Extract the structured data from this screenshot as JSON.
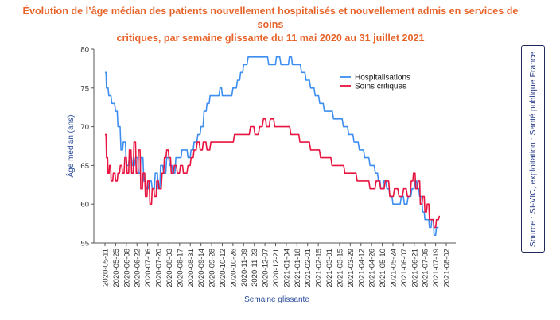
{
  "title": {
    "line1": "Évolution de l’âge médian des patients nouvellement hospitalisés et nouvellement admis en services de soins",
    "line2": "critiques, par semaine glissante du 11 mai 2020 au 31 juillet 2021"
  },
  "source": "Source : SI-VIC, exploitation : Santé publique France",
  "colors": {
    "accent": "#e8632a",
    "hospitalisations": "#3d8ef0",
    "soins_critiques": "#e8133e"
  },
  "chart_data": {
    "type": "line",
    "xlabel": "Semaine glissante",
    "ylabel": "Âge médian (ans)",
    "ylim": [
      55,
      80
    ],
    "yticks": [
      55,
      60,
      65,
      70,
      75,
      80
    ],
    "xticks": [
      "2020-05-11",
      "2020-05-25",
      "2020-06-08",
      "2020-06-22",
      "2020-07-06",
      "2020-07-20",
      "2020-08-03",
      "2020-08-17",
      "2020-08-31",
      "2020-09-14",
      "2020-09-28",
      "2020-10-12",
      "2020-10-26",
      "2020-11-09",
      "2020-11-23",
      "2020-12-07",
      "2020-12-21",
      "2021-01-04",
      "2021-01-18",
      "2021-02-01",
      "2021-02-15",
      "2021-03-01",
      "2021-03-15",
      "2021-03-29",
      "2021-04-12",
      "2021-04-26",
      "2021-05-10",
      "2021-05-24",
      "2021-06-07",
      "2021-06-21",
      "2021-07-05",
      "2021-07-19",
      "2021-08-02"
    ],
    "grid": false,
    "legend": "top-right",
    "series": [
      {
        "name": "Hospitalisations",
        "points": [
          [
            "2020-05-11",
            77
          ],
          [
            "2020-05-13",
            75
          ],
          [
            "2020-05-16",
            74
          ],
          [
            "2020-05-20",
            73
          ],
          [
            "2020-05-25",
            72
          ],
          [
            "2020-05-28",
            70
          ],
          [
            "2020-06-01",
            67
          ],
          [
            "2020-06-04",
            68
          ],
          [
            "2020-06-08",
            65
          ],
          [
            "2020-06-12",
            66
          ],
          [
            "2020-06-16",
            65
          ],
          [
            "2020-06-20",
            66
          ],
          [
            "2020-06-24",
            64
          ],
          [
            "2020-06-27",
            66
          ],
          [
            "2020-07-01",
            63
          ],
          [
            "2020-07-04",
            62
          ],
          [
            "2020-07-08",
            63
          ],
          [
            "2020-07-12",
            62
          ],
          [
            "2020-07-16",
            64
          ],
          [
            "2020-07-20",
            62
          ],
          [
            "2020-07-23",
            65
          ],
          [
            "2020-07-27",
            64
          ],
          [
            "2020-07-31",
            66
          ],
          [
            "2020-08-04",
            65
          ],
          [
            "2020-08-08",
            64
          ],
          [
            "2020-08-12",
            66
          ],
          [
            "2020-08-16",
            66
          ],
          [
            "2020-08-20",
            67
          ],
          [
            "2020-08-24",
            67
          ],
          [
            "2020-08-28",
            66
          ],
          [
            "2020-09-01",
            67
          ],
          [
            "2020-09-05",
            68
          ],
          [
            "2020-09-10",
            69
          ],
          [
            "2020-09-14",
            70
          ],
          [
            "2020-09-18",
            72
          ],
          [
            "2020-09-22",
            73
          ],
          [
            "2020-09-26",
            74
          ],
          [
            "2020-10-05",
            74
          ],
          [
            "2020-10-09",
            75
          ],
          [
            "2020-10-12",
            74
          ],
          [
            "2020-10-20",
            74
          ],
          [
            "2020-10-26",
            75
          ],
          [
            "2020-11-01",
            76
          ],
          [
            "2020-11-05",
            77
          ],
          [
            "2020-11-09",
            78
          ],
          [
            "2020-11-15",
            79
          ],
          [
            "2020-11-23",
            79
          ],
          [
            "2020-12-01",
            79
          ],
          [
            "2020-12-07",
            79
          ],
          [
            "2020-12-12",
            78
          ],
          [
            "2020-12-18",
            78
          ],
          [
            "2020-12-22",
            79
          ],
          [
            "2020-12-28",
            78
          ],
          [
            "2021-01-04",
            78
          ],
          [
            "2021-01-08",
            79
          ],
          [
            "2021-01-12",
            78
          ],
          [
            "2021-01-18",
            78
          ],
          [
            "2021-01-24",
            77
          ],
          [
            "2021-01-30",
            76
          ],
          [
            "2021-02-05",
            75
          ],
          [
            "2021-02-11",
            74
          ],
          [
            "2021-02-17",
            73
          ],
          [
            "2021-02-23",
            72
          ],
          [
            "2021-03-01",
            72
          ],
          [
            "2021-03-07",
            71
          ],
          [
            "2021-03-13",
            71
          ],
          [
            "2021-03-20",
            70
          ],
          [
            "2021-03-27",
            69
          ],
          [
            "2021-04-03",
            68
          ],
          [
            "2021-04-10",
            67
          ],
          [
            "2021-04-17",
            66
          ],
          [
            "2021-04-24",
            65
          ],
          [
            "2021-05-01",
            64
          ],
          [
            "2021-05-05",
            63
          ],
          [
            "2021-05-08",
            62
          ],
          [
            "2021-05-12",
            63
          ],
          [
            "2021-05-16",
            62
          ],
          [
            "2021-05-20",
            61
          ],
          [
            "2021-05-24",
            60
          ],
          [
            "2021-05-30",
            60
          ],
          [
            "2021-06-04",
            61
          ],
          [
            "2021-06-08",
            60
          ],
          [
            "2021-06-13",
            61
          ],
          [
            "2021-06-18",
            62
          ],
          [
            "2021-06-22",
            63
          ],
          [
            "2021-06-25",
            62
          ],
          [
            "2021-06-28",
            61
          ],
          [
            "2021-07-02",
            59
          ],
          [
            "2021-07-05",
            58
          ],
          [
            "2021-07-08",
            58
          ],
          [
            "2021-07-11",
            57
          ],
          [
            "2021-07-14",
            58
          ],
          [
            "2021-07-17",
            56
          ],
          [
            "2021-07-20",
            57
          ],
          [
            "2021-07-23",
            57
          ]
        ]
      },
      {
        "name": "Soins critiques",
        "points": [
          [
            "2020-05-11",
            69
          ],
          [
            "2020-05-13",
            66
          ],
          [
            "2020-05-15",
            64
          ],
          [
            "2020-05-17",
            65
          ],
          [
            "2020-05-19",
            63
          ],
          [
            "2020-05-22",
            64
          ],
          [
            "2020-05-25",
            63
          ],
          [
            "2020-05-28",
            64
          ],
          [
            "2020-05-31",
            65
          ],
          [
            "2020-06-03",
            64
          ],
          [
            "2020-06-06",
            66
          ],
          [
            "2020-06-09",
            64
          ],
          [
            "2020-06-12",
            67
          ],
          [
            "2020-06-15",
            64
          ],
          [
            "2020-06-18",
            68
          ],
          [
            "2020-06-21",
            64
          ],
          [
            "2020-06-24",
            67
          ],
          [
            "2020-06-27",
            62
          ],
          [
            "2020-06-30",
            64
          ],
          [
            "2020-07-03",
            61
          ],
          [
            "2020-07-06",
            63
          ],
          [
            "2020-07-09",
            60
          ],
          [
            "2020-07-12",
            62
          ],
          [
            "2020-07-15",
            61
          ],
          [
            "2020-07-18",
            63
          ],
          [
            "2020-07-21",
            62
          ],
          [
            "2020-07-25",
            64
          ],
          [
            "2020-07-28",
            66
          ],
          [
            "2020-07-31",
            67
          ],
          [
            "2020-08-03",
            66
          ],
          [
            "2020-08-06",
            64
          ],
          [
            "2020-08-10",
            65
          ],
          [
            "2020-08-14",
            64
          ],
          [
            "2020-08-18",
            65
          ],
          [
            "2020-08-22",
            64
          ],
          [
            "2020-08-28",
            65
          ],
          [
            "2020-09-01",
            66
          ],
          [
            "2020-09-05",
            67
          ],
          [
            "2020-09-09",
            68
          ],
          [
            "2020-09-13",
            67
          ],
          [
            "2020-09-17",
            68
          ],
          [
            "2020-09-22",
            67
          ],
          [
            "2020-09-27",
            68
          ],
          [
            "2020-10-05",
            68
          ],
          [
            "2020-10-12",
            68
          ],
          [
            "2020-10-20",
            68
          ],
          [
            "2020-10-28",
            69
          ],
          [
            "2020-11-05",
            69
          ],
          [
            "2020-11-12",
            69
          ],
          [
            "2020-11-18",
            70
          ],
          [
            "2020-11-24",
            69
          ],
          [
            "2020-11-30",
            70
          ],
          [
            "2020-12-05",
            71
          ],
          [
            "2020-12-09",
            70
          ],
          [
            "2020-12-14",
            71
          ],
          [
            "2020-12-20",
            70
          ],
          [
            "2020-12-27",
            70
          ],
          [
            "2021-01-04",
            70
          ],
          [
            "2021-01-10",
            69
          ],
          [
            "2021-01-16",
            69
          ],
          [
            "2021-01-22",
            68
          ],
          [
            "2021-01-28",
            68
          ],
          [
            "2021-02-05",
            67
          ],
          [
            "2021-02-12",
            67
          ],
          [
            "2021-02-18",
            66
          ],
          [
            "2021-02-26",
            66
          ],
          [
            "2021-03-05",
            65
          ],
          [
            "2021-03-14",
            65
          ],
          [
            "2021-03-22",
            64
          ],
          [
            "2021-03-30",
            64
          ],
          [
            "2021-04-07",
            63
          ],
          [
            "2021-04-16",
            63
          ],
          [
            "2021-04-24",
            62
          ],
          [
            "2021-05-02",
            63
          ],
          [
            "2021-05-08",
            62
          ],
          [
            "2021-05-14",
            63
          ],
          [
            "2021-05-20",
            61
          ],
          [
            "2021-05-26",
            62
          ],
          [
            "2021-06-01",
            61
          ],
          [
            "2021-06-07",
            62
          ],
          [
            "2021-06-12",
            61
          ],
          [
            "2021-06-17",
            63
          ],
          [
            "2021-06-20",
            64
          ],
          [
            "2021-06-23",
            62
          ],
          [
            "2021-06-26",
            63
          ],
          [
            "2021-06-29",
            60
          ],
          [
            "2021-07-02",
            61
          ],
          [
            "2021-07-05",
            59
          ],
          [
            "2021-07-08",
            60
          ],
          [
            "2021-07-11",
            58
          ],
          [
            "2021-07-14",
            58
          ],
          [
            "2021-07-17",
            57
          ],
          [
            "2021-07-20",
            58
          ],
          [
            "2021-07-24",
            58.5
          ]
        ]
      }
    ]
  }
}
